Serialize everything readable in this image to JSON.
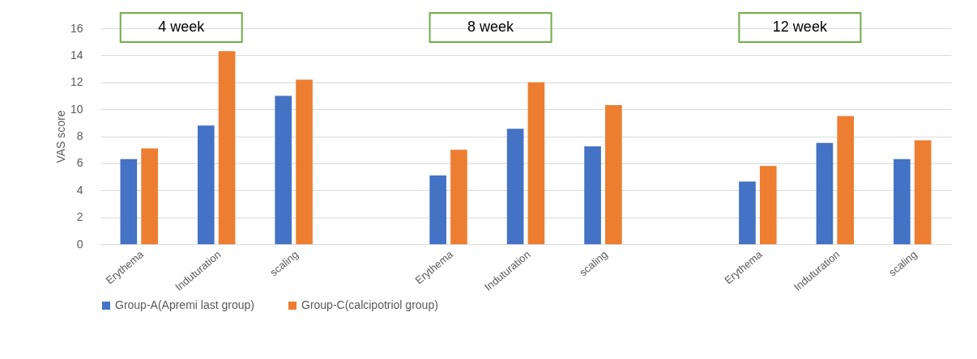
{
  "chart_data": {
    "type": "bar",
    "ylabel": "VAS score",
    "categories": [
      "Erythema",
      "Induturation",
      "scaling",
      null,
      "Erythema",
      "Induturation",
      "scaling",
      null,
      "Erythema",
      "Induturation",
      "scaling"
    ],
    "series": [
      {
        "name": "Group-A(Apremi last group)",
        "color": "#4472c4",
        "values": [
          6.3,
          8.8,
          11.0,
          null,
          5.1,
          8.55,
          7.25,
          null,
          4.65,
          7.5,
          6.3
        ]
      },
      {
        "name": "Group-C(calcipotriol group)",
        "color": "#ed7d31",
        "values": [
          7.1,
          14.3,
          12.2,
          null,
          7.0,
          12.0,
          10.3,
          null,
          5.8,
          9.5,
          7.7
        ]
      }
    ],
    "ylim": [
      0,
      16
    ],
    "yticks": [
      0,
      2,
      4,
      6,
      8,
      10,
      12,
      14,
      16
    ],
    "grid": "y",
    "legend": "bottom",
    "annotations": [
      "4 week",
      "8 week",
      "12 week"
    ]
  }
}
